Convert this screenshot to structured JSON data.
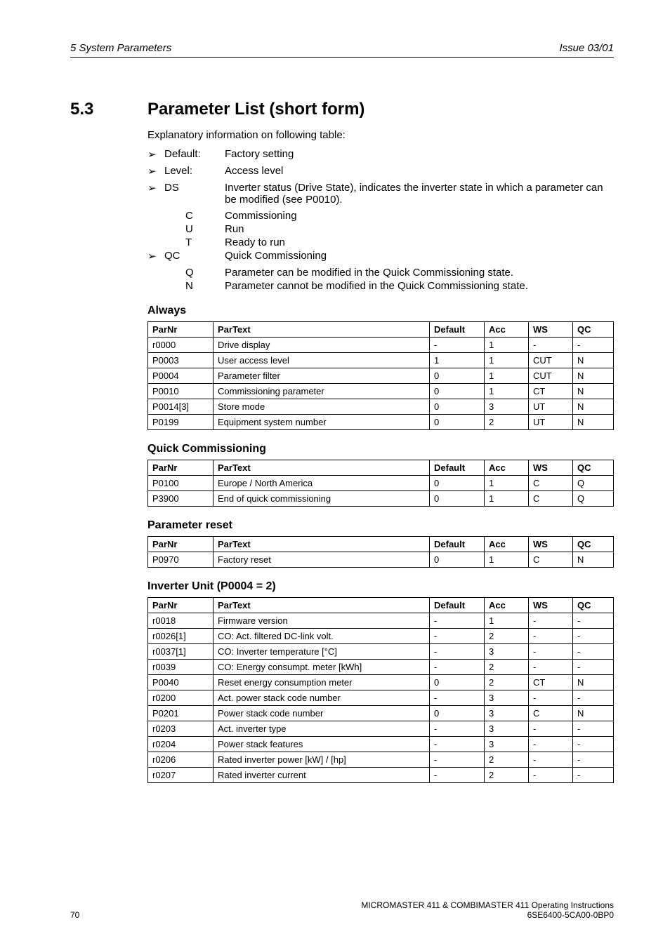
{
  "header": {
    "left": "5  System Parameters",
    "right": "Issue 03/01"
  },
  "section": {
    "number": "5.3",
    "title": "Parameter List (short form)",
    "explanatory": "Explanatory information on following table:",
    "bullets": [
      {
        "key": "Default:",
        "val": "Factory setting"
      },
      {
        "key": "Level:",
        "val": "Access level"
      },
      {
        "key": "DS",
        "val": "Inverter status (Drive State), indicates the inverter state in which a parameter can be modified (see P0010).",
        "subs": [
          {
            "k": "C",
            "v": "Commissioning"
          },
          {
            "k": "U",
            "v": "Run"
          },
          {
            "k": "T",
            "v": "Ready to run"
          }
        ]
      },
      {
        "key": "QC",
        "val": "Quick Commissioning",
        "subs": [
          {
            "k": "Q",
            "v": "Parameter can be modified in the Quick Commissioning state."
          },
          {
            "k": "N",
            "v": "Parameter cannot be modified in the Quick Commissioning state."
          }
        ]
      }
    ]
  },
  "tables": {
    "columns": [
      "ParNr",
      "ParText",
      "Default",
      "Acc",
      "WS",
      "QC"
    ],
    "groups": [
      {
        "title": "Always",
        "rows": [
          [
            "r0000",
            "Drive display",
            "-",
            "1",
            "-",
            "-"
          ],
          [
            "P0003",
            "User access level",
            "1",
            "1",
            "CUT",
            "N"
          ],
          [
            "P0004",
            "Parameter filter",
            "0",
            "1",
            "CUT",
            "N"
          ],
          [
            "P0010",
            "Commissioning parameter",
            "0",
            "1",
            "CT",
            "N"
          ],
          [
            "P0014[3]",
            "Store mode",
            "0",
            "3",
            "UT",
            "N"
          ],
          [
            "P0199",
            "Equipment system number",
            "0",
            "2",
            "UT",
            "N"
          ]
        ]
      },
      {
        "title": "Quick Commissioning",
        "rows": [
          [
            "P0100",
            "Europe / North America",
            "0",
            "1",
            "C",
            "Q"
          ],
          [
            "P3900",
            "End of quick commissioning",
            "0",
            "1",
            "C",
            "Q"
          ]
        ]
      },
      {
        "title": "Parameter reset",
        "rows": [
          [
            "P0970",
            "Factory reset",
            "0",
            "1",
            "C",
            "N"
          ]
        ]
      },
      {
        "title": "Inverter Unit (P0004 = 2)",
        "rows": [
          [
            "r0018",
            "Firmware version",
            "-",
            "1",
            "-",
            "-"
          ],
          [
            "r0026[1]",
            "CO: Act. filtered DC-link volt.",
            "-",
            "2",
            "-",
            "-"
          ],
          [
            "r0037[1]",
            "CO: Inverter temperature [°C]",
            "-",
            "3",
            "-",
            "-"
          ],
          [
            "r0039",
            "CO: Energy consumpt. meter [kWh]",
            "-",
            "2",
            "-",
            "-"
          ],
          [
            "P0040",
            "Reset energy consumption meter",
            "0",
            "2",
            "CT",
            "N"
          ],
          [
            "r0200",
            "Act. power stack code number",
            "-",
            "3",
            "-",
            "-"
          ],
          [
            "P0201",
            "Power stack code number",
            "0",
            "3",
            "C",
            "N"
          ],
          [
            "r0203",
            "Act. inverter type",
            "-",
            "3",
            "-",
            "-"
          ],
          [
            "r0204",
            "Power stack features",
            "-",
            "3",
            "-",
            "-"
          ],
          [
            "r0206",
            "Rated inverter power [kW] / [hp]",
            "-",
            "2",
            "-",
            "-"
          ],
          [
            "r0207",
            "Rated inverter current",
            "-",
            "2",
            "-",
            "-"
          ]
        ]
      }
    ]
  },
  "footer": {
    "pageNum": "70",
    "line1": "MICROMASTER 411 & COMBIMASTER 411     Operating Instructions",
    "line2": "6SE6400-5CA00-0BP0"
  }
}
